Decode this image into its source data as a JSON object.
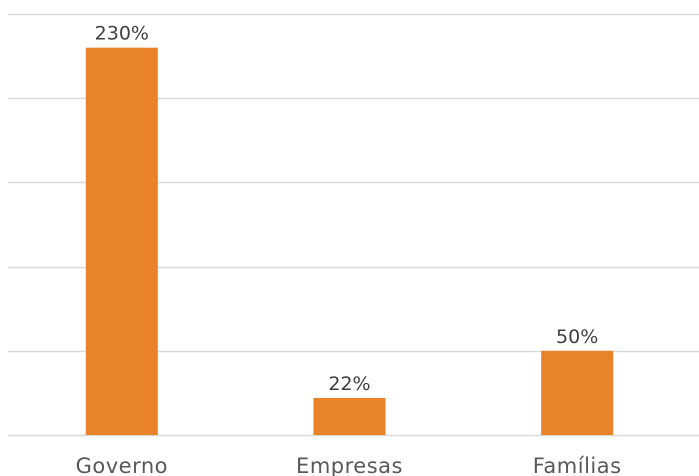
{
  "chart_data": {
    "type": "bar",
    "title": "",
    "xlabel": "",
    "ylabel": "",
    "categories": [
      "Governo",
      "Empresas",
      "Famílias"
    ],
    "values": [
      230,
      22,
      50
    ],
    "data_labels": [
      "230%",
      "22%",
      "50%"
    ],
    "unit": "%",
    "ylim": [
      0,
      250
    ],
    "ytick_step": 50,
    "grid": true,
    "legend": "none",
    "bar_color": "#E8832A",
    "grid_color": "#D9D9D9"
  }
}
